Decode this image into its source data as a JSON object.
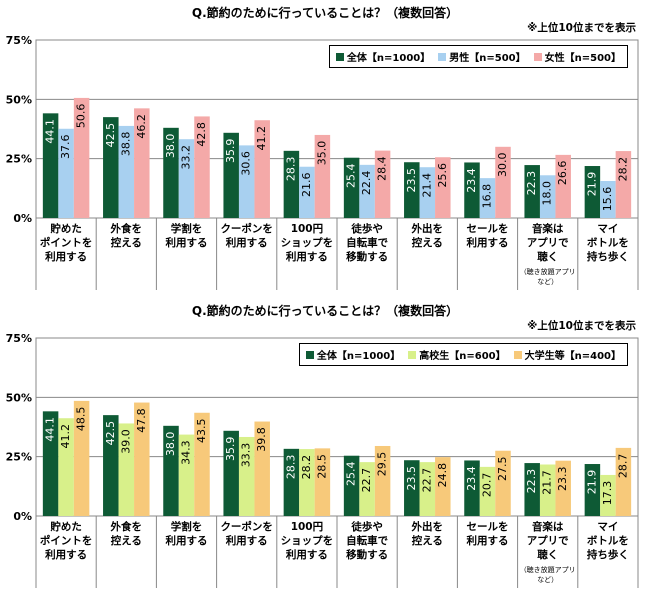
{
  "chart_data": [
    {
      "type": "bar",
      "title": "Q.節約のために行っていることは？（複数回答）",
      "note": "※上位10位までを表示",
      "ylim": [
        0,
        75
      ],
      "yticks": [
        "0%",
        "25%",
        "50%",
        "75%"
      ],
      "ytick_values": [
        0,
        25,
        50,
        75
      ],
      "grid": true,
      "legend_position": "top-right",
      "categories": [
        {
          "lines": [
            "貯めた",
            "ポイントを",
            "利用する"
          ],
          "sub": ""
        },
        {
          "lines": [
            "外食を",
            "控える"
          ],
          "sub": ""
        },
        {
          "lines": [
            "学割を",
            "利用する"
          ],
          "sub": ""
        },
        {
          "lines": [
            "クーポンを",
            "利用する"
          ],
          "sub": ""
        },
        {
          "lines": [
            "100円",
            "ショップを",
            "利用する"
          ],
          "sub": ""
        },
        {
          "lines": [
            "徒歩や",
            "自転車で",
            "移動する"
          ],
          "sub": ""
        },
        {
          "lines": [
            "外出を",
            "控える"
          ],
          "sub": ""
        },
        {
          "lines": [
            "セールを",
            "利用する"
          ],
          "sub": ""
        },
        {
          "lines": [
            "音楽は",
            "アプリで",
            "聴く"
          ],
          "sub": "（聴き放題アプリ など）"
        },
        {
          "lines": [
            "マイ",
            "ボトルを",
            "持ち歩く"
          ],
          "sub": ""
        }
      ],
      "series": [
        {
          "name": "全体【n=1000】",
          "color": "#0e5a35",
          "label_color": "#ffffff",
          "values": [
            44.1,
            42.5,
            38.0,
            35.9,
            28.3,
            25.4,
            23.5,
            23.4,
            22.3,
            21.9
          ]
        },
        {
          "name": "男性【n=500】",
          "color": "#a8d0f0",
          "label_color": "#000000",
          "values": [
            37.6,
            38.8,
            33.2,
            30.6,
            21.6,
            22.4,
            21.4,
            16.8,
            18.0,
            15.6
          ]
        },
        {
          "name": "女性【n=500】",
          "color": "#f4a9a8",
          "label_color": "#000000",
          "values": [
            50.6,
            46.2,
            42.8,
            41.2,
            35.0,
            28.4,
            25.6,
            30.0,
            26.6,
            28.2
          ]
        }
      ]
    },
    {
      "type": "bar",
      "title": "Q.節約のために行っていることは？（複数回答）",
      "note": "※上位10位までを表示",
      "ylim": [
        0,
        75
      ],
      "yticks": [
        "0%",
        "25%",
        "50%",
        "75%"
      ],
      "ytick_values": [
        0,
        25,
        50,
        75
      ],
      "grid": true,
      "legend_position": "top-right",
      "categories": [
        {
          "lines": [
            "貯めた",
            "ポイントを",
            "利用する"
          ],
          "sub": ""
        },
        {
          "lines": [
            "外食を",
            "控える"
          ],
          "sub": ""
        },
        {
          "lines": [
            "学割を",
            "利用する"
          ],
          "sub": ""
        },
        {
          "lines": [
            "クーポンを",
            "利用する"
          ],
          "sub": ""
        },
        {
          "lines": [
            "100円",
            "ショップを",
            "利用する"
          ],
          "sub": ""
        },
        {
          "lines": [
            "徒歩や",
            "自転車で",
            "移動する"
          ],
          "sub": ""
        },
        {
          "lines": [
            "外出を",
            "控える"
          ],
          "sub": ""
        },
        {
          "lines": [
            "セールを",
            "利用する"
          ],
          "sub": ""
        },
        {
          "lines": [
            "音楽は",
            "アプリで",
            "聴く"
          ],
          "sub": "（聴き放題アプリ など）"
        },
        {
          "lines": [
            "マイ",
            "ボトルを",
            "持ち歩く"
          ],
          "sub": ""
        }
      ],
      "series": [
        {
          "name": "全体【n=1000】",
          "color": "#0e5a35",
          "label_color": "#ffffff",
          "values": [
            44.1,
            42.5,
            38.0,
            35.9,
            28.3,
            25.4,
            23.5,
            23.4,
            22.3,
            21.9
          ]
        },
        {
          "name": "高校生【n=600】",
          "color": "#d8f08a",
          "label_color": "#000000",
          "values": [
            41.2,
            39.0,
            34.3,
            33.3,
            28.2,
            22.7,
            22.7,
            20.7,
            21.7,
            17.3
          ]
        },
        {
          "name": "大学生等【n=400】",
          "color": "#f7c97a",
          "label_color": "#000000",
          "values": [
            48.5,
            47.8,
            43.5,
            39.8,
            28.5,
            29.5,
            24.8,
            27.5,
            23.3,
            28.7
          ]
        }
      ]
    }
  ]
}
